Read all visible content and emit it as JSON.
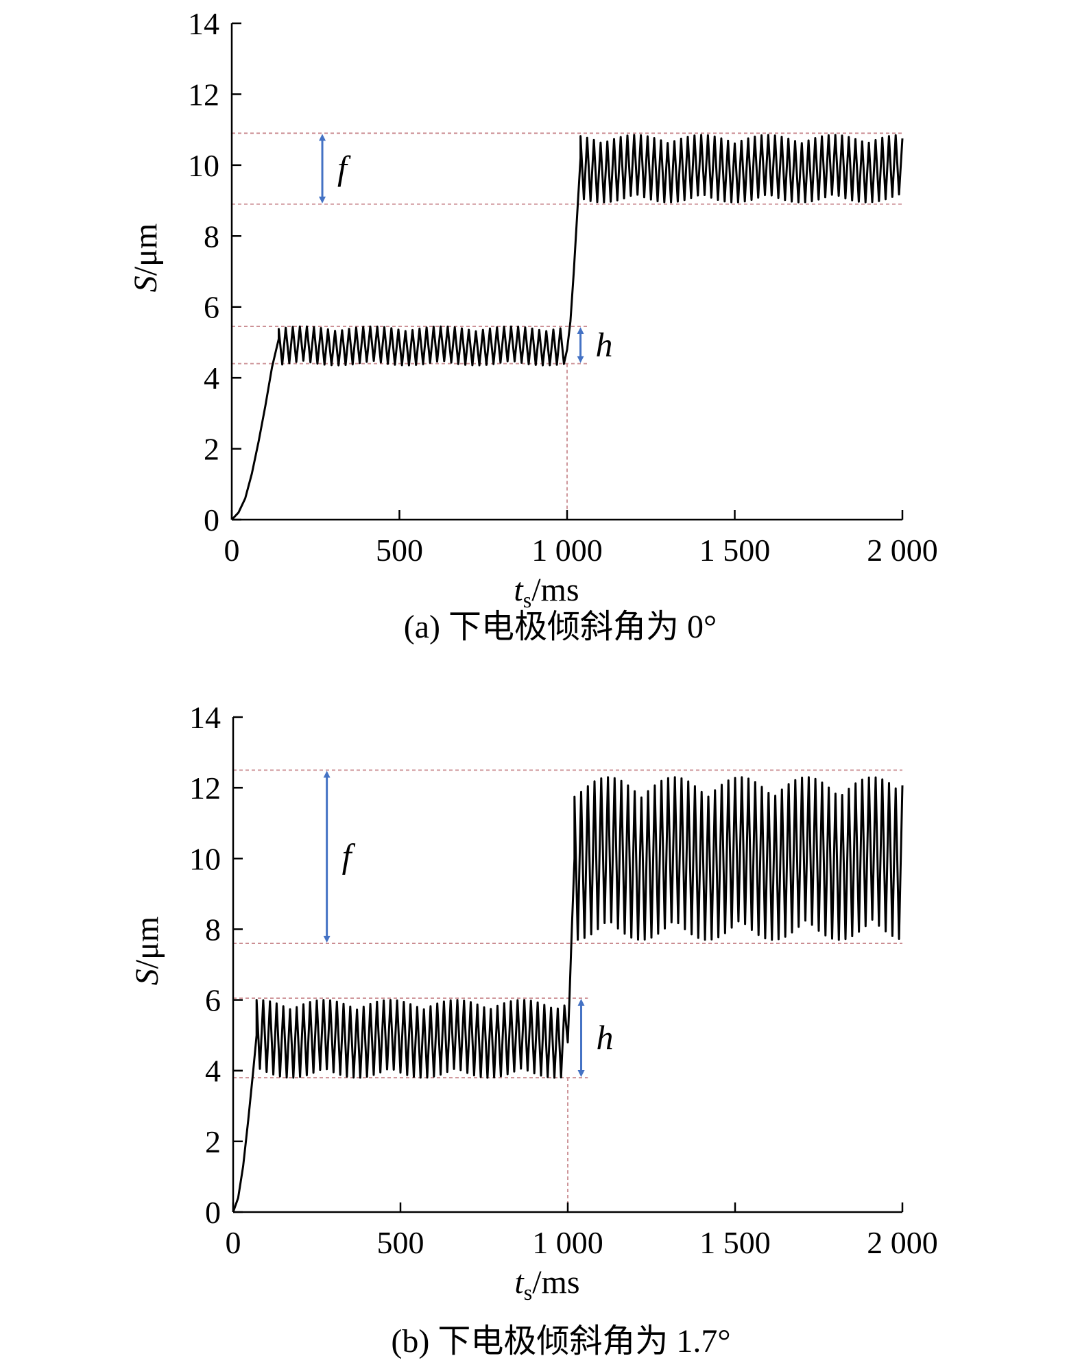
{
  "chart_data": [
    {
      "type": "line",
      "panel": "a",
      "caption": "(a) 下电极倾斜角为 0°",
      "ylabel_var": "S",
      "ylabel_unit": "/μm",
      "xlabel_var": "t",
      "xlabel_sub": "s",
      "xlabel_unit": "/ms",
      "xlim": [
        0,
        2000
      ],
      "ylim": [
        0,
        14
      ],
      "xticks": [
        0,
        500,
        1000,
        1500,
        2000
      ],
      "xtick_labels": [
        "0",
        "500",
        "1 000",
        "1 500",
        "2 000"
      ],
      "yticks": [
        0,
        2,
        4,
        6,
        8,
        10,
        12,
        14
      ],
      "ytick_labels": [
        "0",
        "2",
        "4",
        "6",
        "8",
        "10",
        "12",
        "14"
      ],
      "series": [
        {
          "x": [
            0,
            20,
            40,
            60,
            80,
            100,
            120,
            140,
            1000,
            1010,
            1020,
            1040,
            2000
          ],
          "y": [
            0,
            0.2,
            0.6,
            1.3,
            2.2,
            3.2,
            4.3,
            5.1,
            4.8,
            5.6,
            7.0,
            10.2,
            9.9
          ]
        }
      ],
      "oscillation": [
        {
          "x_range": [
            140,
            1000
          ],
          "center": 4.9,
          "amplitude": 0.55
        },
        {
          "x_range": [
            1040,
            2000
          ],
          "center": 9.9,
          "amplitude": 0.95
        }
      ],
      "reference_lines_y": [
        10.9,
        8.9,
        5.45,
        4.4
      ],
      "reference_line_x": 1000,
      "annotations": [
        {
          "label": "f",
          "x": 270,
          "y_range": [
            8.9,
            10.9
          ]
        },
        {
          "label": "h",
          "x": 1040,
          "y_range": [
            4.4,
            5.45
          ]
        }
      ]
    },
    {
      "type": "line",
      "panel": "b",
      "caption": "(b) 下电极倾斜角为 1.7°",
      "ylabel_var": "S",
      "ylabel_unit": "/μm",
      "xlabel_var": "t",
      "xlabel_sub": "s",
      "xlabel_unit": "/ms",
      "xlim": [
        0,
        2000
      ],
      "ylim": [
        0,
        14
      ],
      "xticks": [
        0,
        500,
        1000,
        1500,
        2000
      ],
      "xtick_labels": [
        "0",
        "500",
        "1 000",
        "1 500",
        "2 000"
      ],
      "yticks": [
        0,
        2,
        4,
        6,
        8,
        10,
        12,
        14
      ],
      "ytick_labels": [
        "0",
        "2",
        "4",
        "6",
        "8",
        "10",
        "12",
        "14"
      ],
      "series": [
        {
          "x": [
            0,
            15,
            30,
            45,
            60,
            70,
            1000,
            1005,
            1012,
            1020,
            2000
          ],
          "y": [
            0,
            0.4,
            1.3,
            2.6,
            4.0,
            5.0,
            4.8,
            6.0,
            8.0,
            10.0,
            10.0
          ]
        }
      ],
      "oscillation": [
        {
          "x_range": [
            70,
            1000
          ],
          "center": 4.9,
          "amplitude": 1.1
        },
        {
          "x_range": [
            1020,
            2000
          ],
          "center": 10.0,
          "amplitude": 2.3
        }
      ],
      "reference_lines_y": [
        12.5,
        7.6,
        6.05,
        3.8
      ],
      "reference_line_x": 1000,
      "annotations": [
        {
          "label": "f",
          "x": 280,
          "y_range": [
            7.6,
            12.5
          ]
        },
        {
          "label": "h",
          "x": 1040,
          "y_range": [
            3.8,
            6.05
          ]
        }
      ]
    }
  ],
  "colors": {
    "line": "#000000",
    "reference": "#c98a8f",
    "arrow": "#4472c4"
  }
}
